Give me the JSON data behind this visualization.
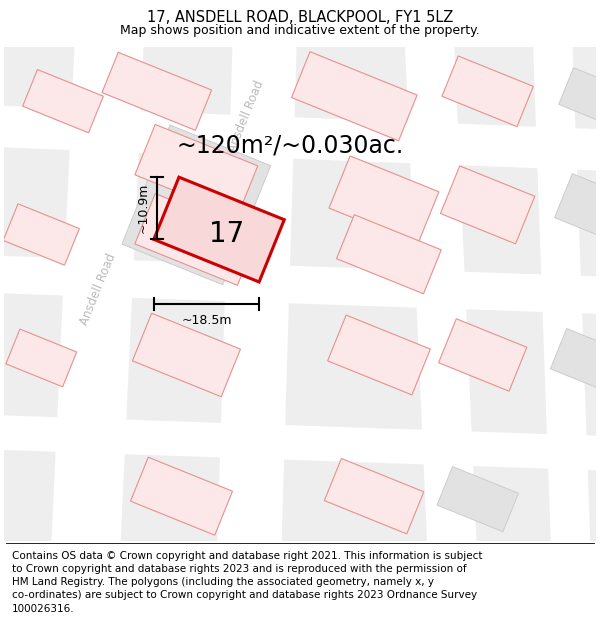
{
  "title": "17, ANSDELL ROAD, BLACKPOOL, FY1 5LZ",
  "subtitle": "Map shows position and indicative extent of the property.",
  "footer": "Contains OS data © Crown copyright and database right 2021. This information is subject\nto Crown copyright and database rights 2023 and is reproduced with the permission of\nHM Land Registry. The polygons (including the associated geometry, namely x, y\nco-ordinates) are subject to Crown copyright and database rights 2023 Ordnance Survey\n100026316.",
  "area_label": "~120m²/~0.030ac.",
  "width_label": "~18.5m",
  "height_label": "~10.9m",
  "number_label": "17",
  "title_fontsize": 10.5,
  "subtitle_fontsize": 9,
  "footer_fontsize": 7.5,
  "area_fontsize": 17,
  "dim_fontsize": 9,
  "number_fontsize": 20,
  "road_label_fontsize": 8.5
}
